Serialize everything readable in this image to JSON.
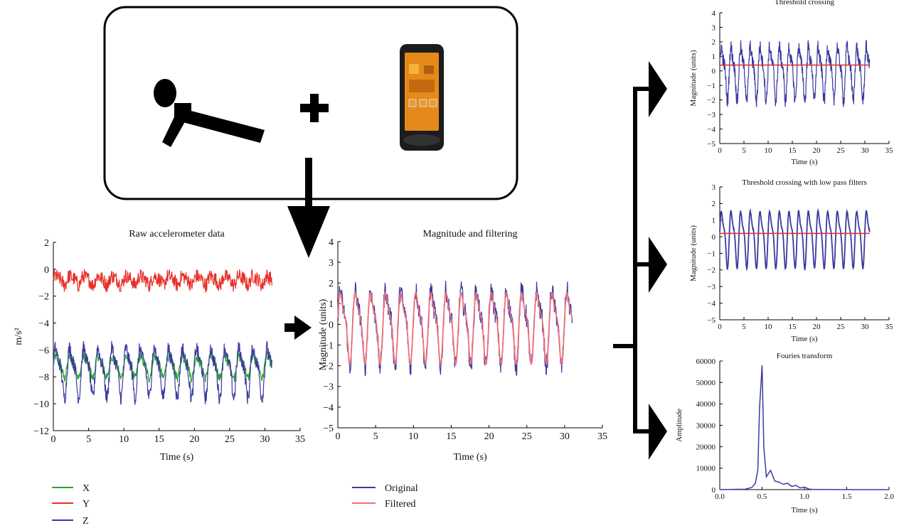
{
  "colors": {
    "x_series": "#2ca02c",
    "y_series": "#e8302a",
    "z_series": "#3a3aa0",
    "original": "#3a3aa0",
    "filtered": "#f0707a",
    "threshold": "#e8302a",
    "arrow": "#000000"
  },
  "icons": {
    "person": "push-up-person-icon",
    "plus": "plus-icon",
    "phone": "smartphone-icon"
  },
  "chart_data": [
    {
      "id": "raw",
      "type": "line",
      "title": "Raw accelerometer data",
      "xlabel": "Time (s)",
      "ylabel": "m/s²",
      "xlim": [
        0,
        35
      ],
      "ylim": [
        -12,
        2
      ],
      "xticks": [
        "0",
        "5",
        "10",
        "15",
        "20",
        "25",
        "30",
        "35"
      ],
      "yticks": [
        "2",
        "0",
        "−2",
        "−4",
        "−6",
        "−8",
        "−10",
        "−12"
      ],
      "series": [
        {
          "name": "X",
          "color": "#2ca02c",
          "duration": 31,
          "base": -7.2,
          "amp": 0.7,
          "period": 2.0,
          "noise": 0.35
        },
        {
          "name": "Y",
          "color": "#e8302a",
          "duration": 31,
          "base": -0.8,
          "amp": 0.3,
          "period": 2.0,
          "noise": 0.55
        },
        {
          "name": "Z",
          "color": "#3a3aa0",
          "duration": 31,
          "base": -7.5,
          "amp": 1.6,
          "period": 2.0,
          "noise": 0.55
        }
      ],
      "legend": [
        "X",
        "Y",
        "Z"
      ]
    },
    {
      "id": "magnitude",
      "type": "line",
      "title": "Magnitude and filtering",
      "xlabel": "Time (s)",
      "ylabel": "Magnitude (units)",
      "xlim": [
        0,
        35
      ],
      "ylim": [
        -5,
        4
      ],
      "xticks": [
        "0",
        "5",
        "10",
        "15",
        "20",
        "25",
        "30",
        "35"
      ],
      "yticks": [
        "4",
        "3",
        "2",
        "1",
        "0",
        "−1",
        "−2",
        "−3",
        "−4",
        "−5"
      ],
      "series": [
        {
          "name": "Original",
          "color": "#3a3aa0",
          "duration": 31,
          "base": 0,
          "amp": 1.6,
          "period": 2.0,
          "noise": 0.5
        },
        {
          "name": "Filtered",
          "color": "#f0707a",
          "duration": 31,
          "base": 0,
          "amp": 1.5,
          "period": 2.0,
          "noise": 0.0
        }
      ],
      "legend": [
        "Original",
        "Filtered"
      ]
    },
    {
      "id": "threshold",
      "type": "line",
      "title": "Threshold crossing",
      "xlabel": "Time (s)",
      "ylabel": "Magnitude (units)",
      "xlim": [
        0,
        35
      ],
      "ylim": [
        -5,
        4
      ],
      "xticks": [
        "0",
        "5",
        "10",
        "15",
        "20",
        "25",
        "30",
        "35"
      ],
      "yticks": [
        "4",
        "3",
        "2",
        "1",
        "0",
        "−1",
        "−2",
        "−3",
        "−4",
        "−5"
      ],
      "threshold": 0.4,
      "series": [
        {
          "name": "Original",
          "color": "#3a3aa0",
          "duration": 31,
          "base": 0,
          "amp": 1.6,
          "period": 2.0,
          "noise": 0.5
        }
      ]
    },
    {
      "id": "threshold-lp",
      "type": "line",
      "title": "Threshold crossing with low pass filters",
      "xlabel": "Time (s)",
      "ylabel": "Magnitude (units)",
      "xlim": [
        0,
        35
      ],
      "ylim": [
        -5,
        3
      ],
      "xticks": [
        "0",
        "5",
        "10",
        "15",
        "20",
        "25",
        "30",
        "35"
      ],
      "yticks": [
        "3",
        "2",
        "1",
        "0",
        "−1",
        "−2",
        "−3",
        "−4",
        "−5"
      ],
      "threshold": 0.2,
      "series": [
        {
          "name": "Filtered",
          "color": "#3a3aa0",
          "duration": 31,
          "base": 0,
          "amp": 1.5,
          "period": 2.0,
          "noise": 0.05
        }
      ]
    },
    {
      "id": "fourier",
      "type": "line",
      "title": "Fouries transform",
      "xlabel": "Time (s)",
      "ylabel": "Amplitude",
      "xlim": [
        0,
        2
      ],
      "ylim": [
        0,
        60000
      ],
      "xticks": [
        "0.0",
        "0.5",
        "1.0",
        "1.5",
        "2.0"
      ],
      "yticks": [
        "60000",
        "50000",
        "40000",
        "30000",
        "20000",
        "10000",
        "0"
      ],
      "peak": {
        "x": 0.5,
        "y": 58000
      },
      "points": [
        [
          0.0,
          0
        ],
        [
          0.3,
          200
        ],
        [
          0.38,
          1000
        ],
        [
          0.42,
          3000
        ],
        [
          0.45,
          9000
        ],
        [
          0.47,
          38000
        ],
        [
          0.5,
          58000
        ],
        [
          0.52,
          20000
        ],
        [
          0.55,
          6000
        ],
        [
          0.6,
          9000
        ],
        [
          0.65,
          4000
        ],
        [
          0.7,
          3500
        ],
        [
          0.75,
          2500
        ],
        [
          0.8,
          3000
        ],
        [
          0.85,
          1500
        ],
        [
          0.9,
          2000
        ],
        [
          0.95,
          800
        ],
        [
          1.0,
          1200
        ],
        [
          1.05,
          300
        ],
        [
          1.1,
          100
        ],
        [
          1.2,
          50
        ],
        [
          1.5,
          0
        ],
        [
          2.0,
          0
        ]
      ]
    }
  ]
}
